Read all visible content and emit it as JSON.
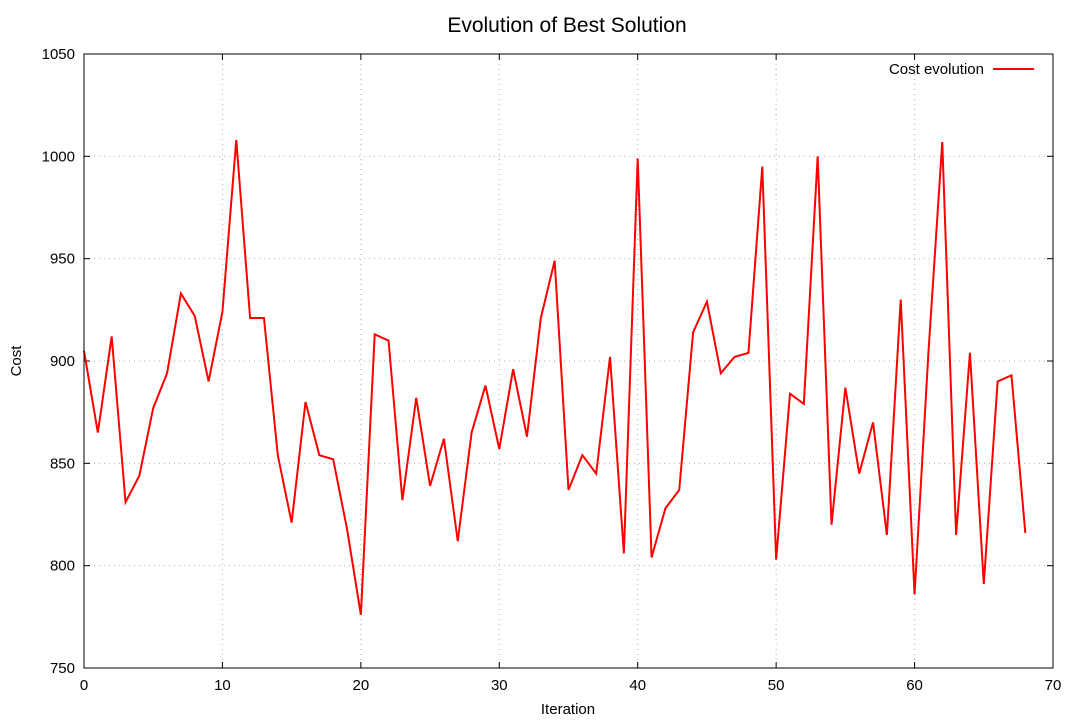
{
  "chart_data": {
    "type": "line",
    "title": "Evolution of Best Solution",
    "xlabel": "Iteration",
    "ylabel": "Cost",
    "xlim": [
      0,
      70
    ],
    "ylim": [
      750,
      1050
    ],
    "xticks": [
      0,
      10,
      20,
      30,
      40,
      50,
      60,
      70
    ],
    "yticks": [
      750,
      800,
      850,
      900,
      950,
      1000,
      1050
    ],
    "grid": true,
    "legend_position": "top-right",
    "series": [
      {
        "name": "Cost evolution",
        "color": "#ff0000",
        "x": [
          0,
          1,
          2,
          3,
          4,
          5,
          6,
          7,
          8,
          9,
          10,
          11,
          12,
          13,
          14,
          15,
          16,
          17,
          18,
          19,
          20,
          21,
          22,
          23,
          24,
          25,
          26,
          27,
          28,
          29,
          30,
          31,
          32,
          33,
          34,
          35,
          36,
          37,
          38,
          39,
          40,
          41,
          42,
          43,
          44,
          45,
          46,
          47,
          48,
          49,
          50,
          51,
          52,
          53,
          54,
          55,
          56,
          57,
          58,
          59,
          60,
          61,
          62,
          63,
          64,
          65,
          66,
          67,
          68
        ],
        "y": [
          905,
          865,
          912,
          831,
          844,
          877,
          894,
          933,
          922,
          890,
          924,
          1008,
          921,
          921,
          854,
          821,
          880,
          854,
          852,
          818,
          776,
          913,
          910,
          832,
          882,
          839,
          862,
          812,
          865,
          888,
          857,
          896,
          863,
          921,
          949,
          837,
          854,
          845,
          902,
          806,
          999,
          804,
          828,
          837,
          914,
          929,
          894,
          902,
          904,
          995,
          803,
          884,
          879,
          1000,
          820,
          887,
          845,
          870,
          815,
          930,
          786,
          904,
          1007,
          815,
          904,
          791,
          890,
          893,
          816
        ]
      }
    ]
  }
}
